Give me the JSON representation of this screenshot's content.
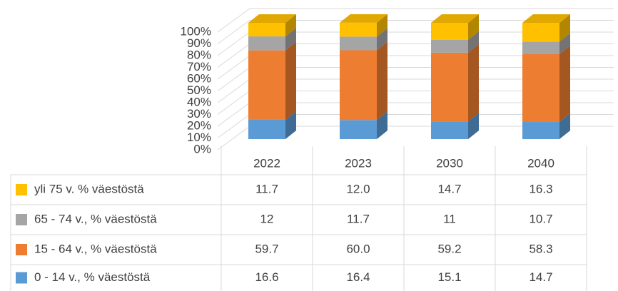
{
  "chart_data": {
    "type": "stacked_bar_3d",
    "categories": [
      "2022",
      "2023",
      "2030",
      "2040"
    ],
    "series": [
      {
        "name": "yli 75 v. % väestöstä",
        "color": "#ffc000",
        "values": [
          11.7,
          12.0,
          14.7,
          16.3
        ],
        "value_labels": [
          "11.7",
          "12.0",
          "14.7",
          "16.3"
        ]
      },
      {
        "name": "65 - 74 v., % väestöstä",
        "color": "#a5a5a5",
        "values": [
          12,
          11.7,
          11,
          10.7
        ],
        "value_labels": [
          "12",
          "11.7",
          "11",
          "10.7"
        ]
      },
      {
        "name": "15 - 64 v., % väestöstä",
        "color": "#ed7d31",
        "values": [
          59.7,
          60.0,
          59.2,
          58.3
        ],
        "value_labels": [
          "59.7",
          "60.0",
          "59.2",
          "58.3"
        ]
      },
      {
        "name": "0 - 14 v., % väestöstä",
        "color": "#5b9bd5",
        "values": [
          16.6,
          16.4,
          15.1,
          14.7
        ],
        "value_labels": [
          "16.6",
          "16.4",
          "15.1",
          "14.7"
        ]
      }
    ],
    "ylim": [
      0,
      100
    ],
    "yticks": [
      {
        "value": 0,
        "label": "0%"
      },
      {
        "value": 10,
        "label": "10%"
      },
      {
        "value": 20,
        "label": "20%"
      },
      {
        "value": 30,
        "label": "30%"
      },
      {
        "value": 40,
        "label": "40%"
      },
      {
        "value": 50,
        "label": "50%"
      },
      {
        "value": 60,
        "label": "60%"
      },
      {
        "value": 70,
        "label": "70%"
      },
      {
        "value": 80,
        "label": "80%"
      },
      {
        "value": 90,
        "label": "90%"
      },
      {
        "value": 100,
        "label": "100%"
      }
    ],
    "grid": true,
    "legend": "table"
  }
}
